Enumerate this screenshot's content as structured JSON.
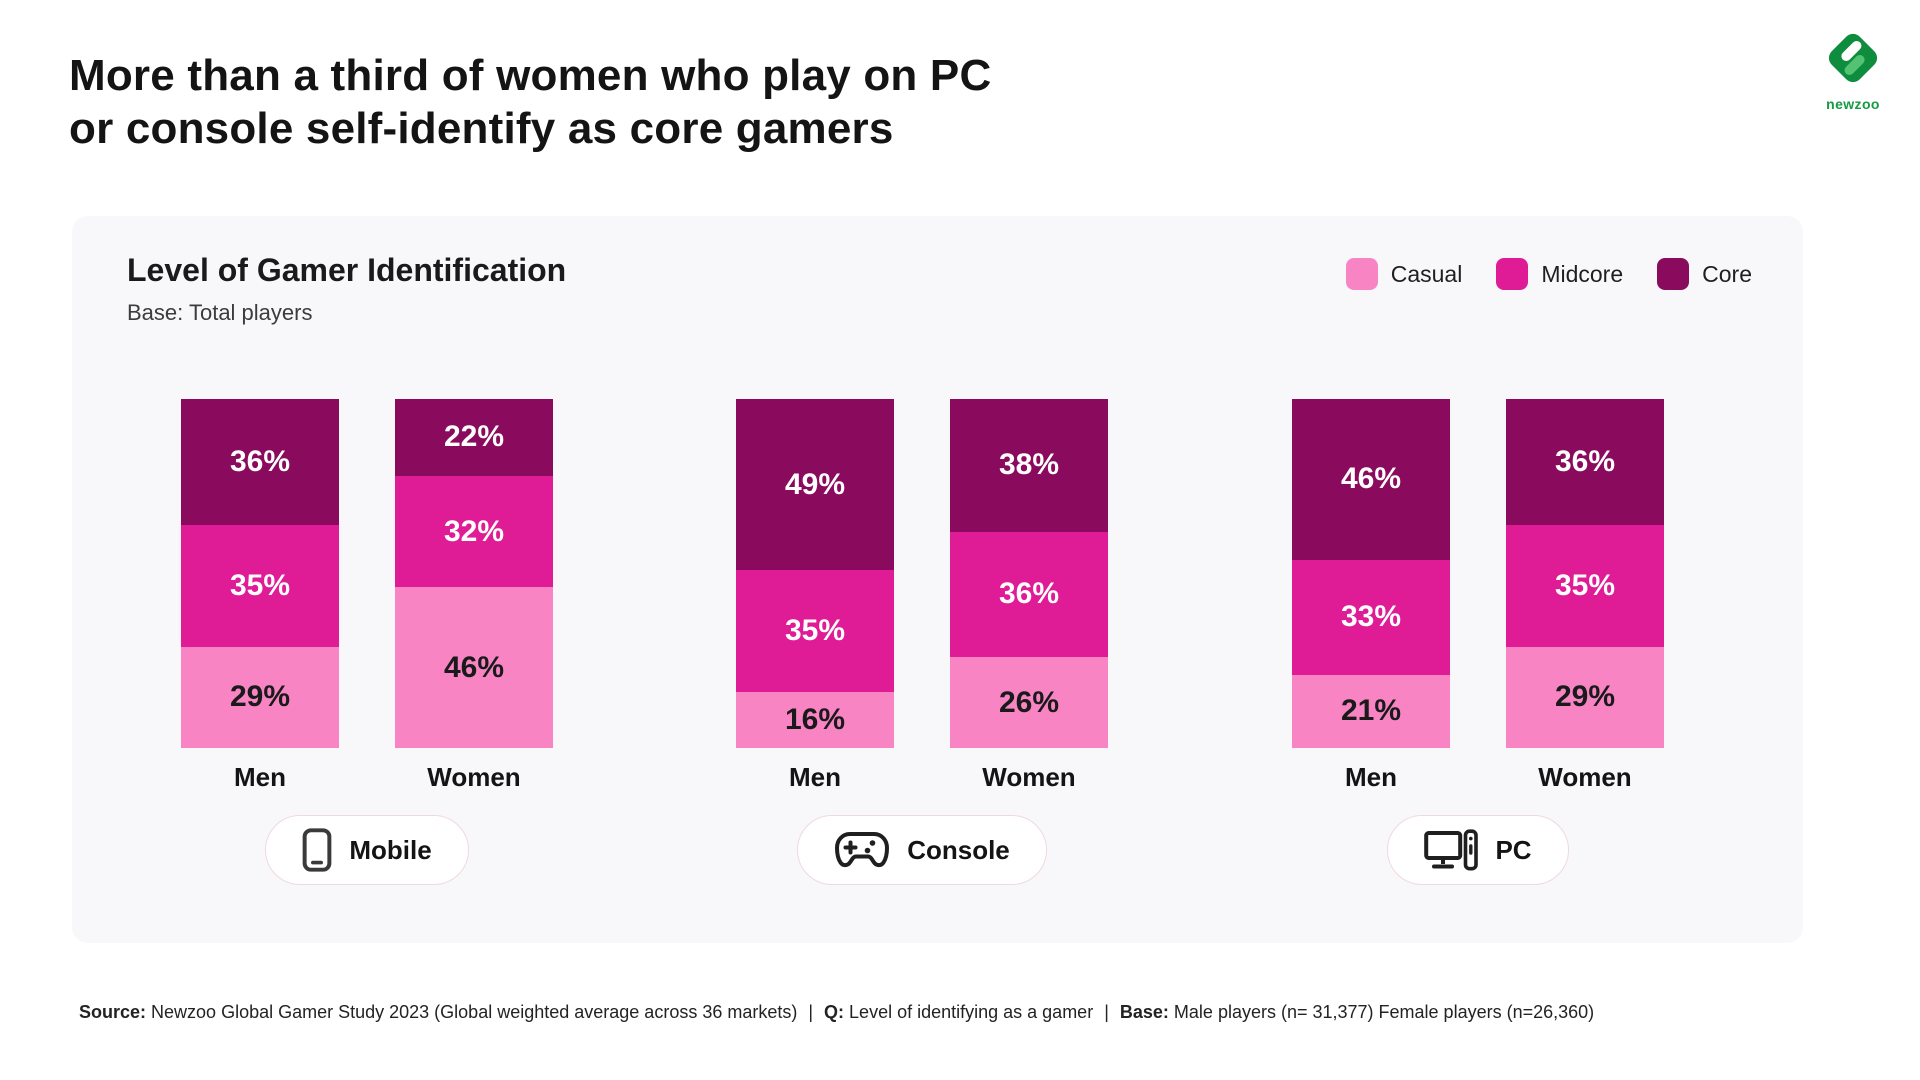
{
  "page": {
    "title_lines": [
      "More than a third of women who play on PC",
      "or console self-identify as core gamers"
    ]
  },
  "logo": {
    "wordmark": "newzoo"
  },
  "chart_data": {
    "type": "bar",
    "stacked": true,
    "orientation": "vertical",
    "unit": "%",
    "title": "Level of Gamer Identification",
    "subtitle": "Base: Total players",
    "legend_position": "top-right",
    "legend": [
      {
        "name": "Casual",
        "color": "#F884C4"
      },
      {
        "name": "Midcore",
        "color": "#DF1B96"
      },
      {
        "name": "Core",
        "color": "#8A0B5E"
      }
    ],
    "value_label_color_on_casual": "#1A1A1A",
    "value_label_color_on_dark": "#FFFFFF",
    "groups": [
      {
        "platform": "Mobile",
        "icon": "smartphone-icon",
        "bars": [
          {
            "category": "Men",
            "casual": 29,
            "midcore": 35,
            "core": 36
          },
          {
            "category": "Women",
            "casual": 46,
            "midcore": 32,
            "core": 22
          }
        ]
      },
      {
        "platform": "Console",
        "icon": "gamepad-icon",
        "bars": [
          {
            "category": "Men",
            "casual": 16,
            "midcore": 35,
            "core": 49
          },
          {
            "category": "Women",
            "casual": 26,
            "midcore": 36,
            "core": 38
          }
        ]
      },
      {
        "platform": "PC",
        "icon": "desktop-icon",
        "bars": [
          {
            "category": "Men",
            "casual": 21,
            "midcore": 33,
            "core": 46
          },
          {
            "category": "Women",
            "casual": 29,
            "midcore": 35,
            "core": 36
          }
        ]
      }
    ]
  },
  "footer": {
    "source_label": "Source:",
    "source_text": " Newzoo Global Gamer Study 2023 (Global weighted average across 36 markets)",
    "separator": "|",
    "q_label": "Q:",
    "q_text": " Level of identifying as a gamer",
    "base_label": "Base:",
    "base_text": " Male players (n= 31,377) Female players (n=26,360)"
  }
}
